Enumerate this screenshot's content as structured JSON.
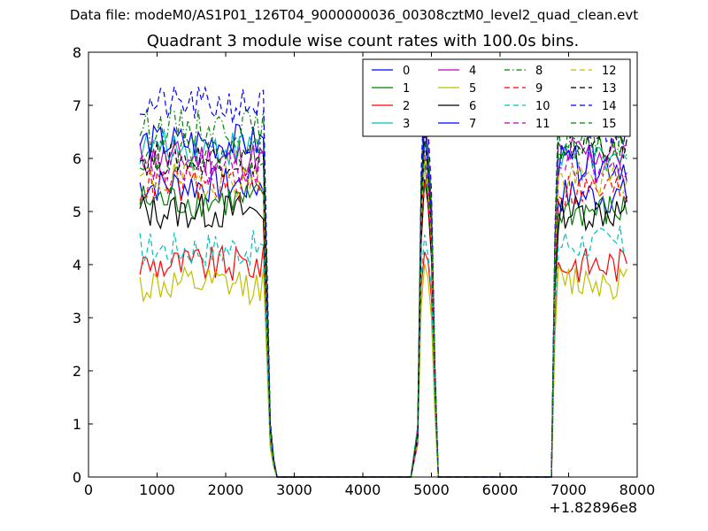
{
  "figure": {
    "suptitle": "Data file: modeM0/AS1P01_126T04_9000000036_00308cztM0_level2_quad_clean.evt"
  },
  "chart_data": {
    "type": "line",
    "title": "Quadrant 3 module wise count rates with 100.0s bins.",
    "xlabel": "",
    "ylabel": "",
    "xlim": [
      0,
      8000
    ],
    "ylim": [
      0,
      8
    ],
    "x_offset_label": "+1.82896e8",
    "x_ticks": [
      0,
      1000,
      2000,
      3000,
      4000,
      5000,
      6000,
      7000,
      8000
    ],
    "x_tick_labels": [
      "0",
      "1000",
      "2000",
      "3000",
      "4000",
      "5000",
      "6000",
      "7000",
      "8000"
    ],
    "y_ticks": [
      0,
      1,
      2,
      3,
      4,
      5,
      6,
      7,
      8
    ],
    "y_tick_labels": [
      "0",
      "1",
      "2",
      "3",
      "4",
      "5",
      "6",
      "7",
      "8"
    ],
    "grid": false,
    "legend_position": "top-right",
    "legend_columns": 4,
    "segments": [
      {
        "start": 750,
        "end": 2550,
        "drop_end": 2850
      },
      {
        "start": 4750,
        "end": 5150,
        "drop_end": 5200
      },
      {
        "start": 6750,
        "end": 7850,
        "drop_end": 7850
      }
    ],
    "series": [
      {
        "name": "0",
        "color": "#0000ff",
        "dash": "solid",
        "level_a": 5.5,
        "level_b": 5.9,
        "level_c": 5.3
      },
      {
        "name": "1",
        "color": "#008000",
        "dash": "solid",
        "level_a": 5.2,
        "level_b": 5.8,
        "level_c": 5.0
      },
      {
        "name": "2",
        "color": "#ff0000",
        "dash": "solid",
        "level_a": 4.0,
        "level_b": 4.5,
        "level_c": 4.0
      },
      {
        "name": "3",
        "color": "#00bfbf",
        "dash": "solid",
        "level_a": 6.2,
        "level_b": 6.5,
        "level_c": 5.9
      },
      {
        "name": "4",
        "color": "#bf00bf",
        "dash": "solid",
        "level_a": 6.0,
        "level_b": 6.8,
        "level_c": 6.1
      },
      {
        "name": "5",
        "color": "#bfbf00",
        "dash": "solid",
        "level_a": 3.6,
        "level_b": 4.0,
        "level_c": 3.7
      },
      {
        "name": "6",
        "color": "#000000",
        "dash": "solid",
        "level_a": 5.0,
        "level_b": 5.5,
        "level_c": 5.0
      },
      {
        "name": "7",
        "color": "#0000ff",
        "dash": "solid",
        "level_a": 6.3,
        "level_b": 6.6,
        "level_c": 5.9
      },
      {
        "name": "8",
        "color": "#008000",
        "dash": "dashdot",
        "level_a": 6.6,
        "level_b": 7.0,
        "level_c": 6.3
      },
      {
        "name": "9",
        "color": "#ff0000",
        "dash": "dashed",
        "level_a": 5.5,
        "level_b": 5.8,
        "level_c": 5.4
      },
      {
        "name": "10",
        "color": "#00bfbf",
        "dash": "dashed",
        "level_a": 4.3,
        "level_b": 4.7,
        "level_c": 4.4
      },
      {
        "name": "11",
        "color": "#bf00bf",
        "dash": "dashed",
        "level_a": 5.8,
        "level_b": 6.2,
        "level_c": 5.8
      },
      {
        "name": "12",
        "color": "#bfbf00",
        "dash": "dashed",
        "level_a": 5.6,
        "level_b": 6.0,
        "level_c": 5.6
      },
      {
        "name": "13",
        "color": "#000000",
        "dash": "dashed",
        "level_a": 6.0,
        "level_b": 6.3,
        "level_c": 6.3
      },
      {
        "name": "14",
        "color": "#0000ff",
        "dash": "dashed",
        "level_a": 7.0,
        "level_b": 7.2,
        "level_c": 6.6
      },
      {
        "name": "15",
        "color": "#008000",
        "dash": "dashed",
        "level_a": 6.1,
        "level_b": 6.6,
        "level_c": 6.3
      }
    ]
  }
}
